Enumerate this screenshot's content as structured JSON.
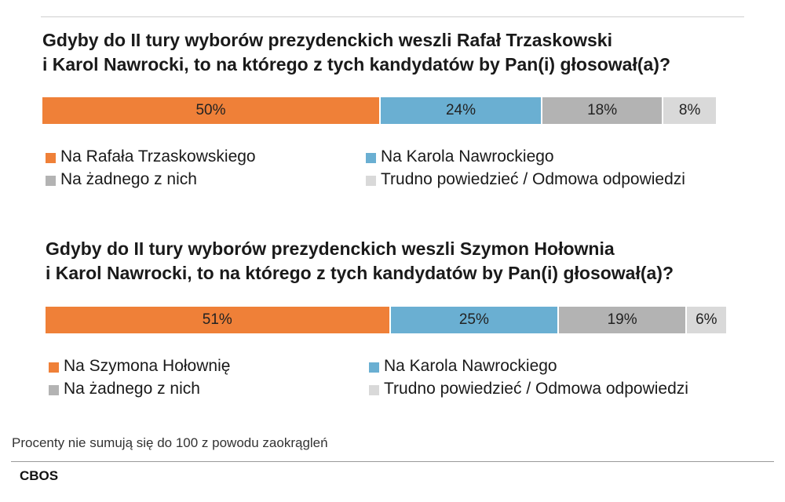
{
  "note": "Procenty nie sumują się do 100 z powodu zaokrągleń",
  "source": "CBOS",
  "colors": {
    "orange": "#ef8038",
    "blue": "#6aafd2",
    "gray": "#b3b3b3",
    "lightgray": "#d9d9d9"
  },
  "chart_data": [
    {
      "type": "bar",
      "orientation": "horizontal-stacked",
      "title": "Gdyby do II tury wyborów prezydenckich weszli Rafał Trzaskowski\ni Karol Nawrocki, to na którego z tych kandydatów by Pan(i) głosował(a)?",
      "series": [
        {
          "name": "Na Rafała Trzaskowskiego",
          "value": 50,
          "label": "50%",
          "color": "#ef8038"
        },
        {
          "name": "Na Karola Nawrockiego",
          "value": 24,
          "label": "24%",
          "color": "#6aafd2"
        },
        {
          "name": "Na żadnego z nich",
          "value": 18,
          "label": "18%",
          "color": "#b3b3b3"
        },
        {
          "name": "Trudno powiedzieć / Odmowa odpowiedzi",
          "value": 8,
          "label": "8%",
          "color": "#d9d9d9"
        }
      ],
      "legend_position": "bottom"
    },
    {
      "type": "bar",
      "orientation": "horizontal-stacked",
      "title": "Gdyby do II tury wyborów prezydenckich weszli Szymon Hołownia\ni Karol Nawrocki, to na którego z tych kandydatów by Pan(i) głosował(a)?",
      "series": [
        {
          "name": "Na Szymona Hołownię",
          "value": 51,
          "label": "51%",
          "color": "#ef8038"
        },
        {
          "name": "Na Karola Nawrockiego",
          "value": 25,
          "label": "25%",
          "color": "#6aafd2"
        },
        {
          "name": "Na żadnego z nich",
          "value": 19,
          "label": "19%",
          "color": "#b3b3b3"
        },
        {
          "name": "Trudno powiedzieć / Odmowa odpowiedzi",
          "value": 6,
          "label": "6%",
          "color": "#d9d9d9"
        }
      ],
      "legend_position": "bottom"
    }
  ]
}
